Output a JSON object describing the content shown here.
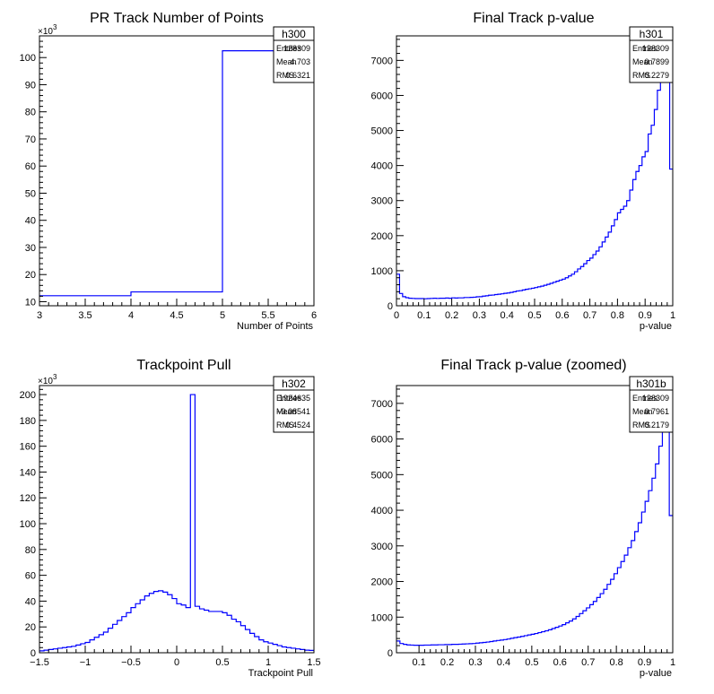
{
  "chart_data": [
    {
      "type": "histogram",
      "title": "PR Track Number of Points",
      "xlabel": "Number of Points",
      "ylabel": "",
      "xlim": [
        3,
        6
      ],
      "ylim": [
        8.5,
        108
      ],
      "y_multiplier": "×10",
      "y_multiplier_exp": "3",
      "xticks": [
        3,
        3.5,
        4,
        4.5,
        5,
        5.5,
        6
      ],
      "xtick_labels": [
        "3",
        "3.5",
        "4",
        "4.5",
        "5",
        "5.5",
        "6"
      ],
      "yticks": [
        10,
        20,
        30,
        40,
        50,
        60,
        70,
        80,
        90,
        100
      ],
      "ytick_labels": [
        "10",
        "20",
        "30",
        "40",
        "50",
        "60",
        "70",
        "80",
        "90",
        "100"
      ],
      "bins": {
        "x0": 3,
        "x1": 6,
        "values": [
          12.2,
          12.2,
          12.2,
          12.2,
          13.6,
          13.6,
          13.6,
          13.6,
          102.5,
          102.5,
          102.5,
          102.5
        ]
      },
      "line_color": "#0000ff",
      "stats": {
        "name": "h300",
        "rows": [
          {
            "label": "Entries",
            "value": "128309"
          },
          {
            "label": "Mean",
            "value": "4.703"
          },
          {
            "label": "RMS",
            "value": "0.6321"
          }
        ]
      }
    },
    {
      "type": "histogram",
      "title": "Final Track p-value",
      "xlabel": "p-value",
      "ylabel": "",
      "xlim": [
        0,
        1
      ],
      "ylim": [
        0,
        7700
      ],
      "xticks": [
        0,
        0.1,
        0.2,
        0.3,
        0.4,
        0.5,
        0.6,
        0.7,
        0.8,
        0.9,
        1
      ],
      "xtick_labels": [
        "0",
        "0.1",
        "0.2",
        "0.3",
        "0.4",
        "0.5",
        "0.6",
        "0.7",
        "0.8",
        "0.9",
        "1"
      ],
      "yticks": [
        0,
        1000,
        2000,
        3000,
        4000,
        5000,
        6000,
        7000
      ],
      "ytick_labels": [
        "0",
        "1000",
        "2000",
        "3000",
        "4000",
        "5000",
        "6000",
        "7000"
      ],
      "bins": {
        "x0": 0,
        "x1": 1,
        "values": [
          900,
          350,
          260,
          230,
          215,
          210,
          205,
          205,
          205,
          200,
          205,
          210,
          215,
          210,
          215,
          215,
          220,
          215,
          225,
          220,
          225,
          225,
          235,
          235,
          240,
          245,
          255,
          260,
          275,
          285,
          300,
          305,
          320,
          330,
          340,
          355,
          365,
          380,
          400,
          420,
          430,
          450,
          470,
          485,
          500,
          520,
          540,
          560,
          585,
          610,
          640,
          670,
          700,
          730,
          760,
          800,
          850,
          900,
          970,
          1050,
          1120,
          1200,
          1290,
          1360,
          1460,
          1560,
          1680,
          1820,
          1960,
          2100,
          2280,
          2460,
          2650,
          2750,
          2840,
          3000,
          3300,
          3600,
          3830,
          4000,
          4250,
          4400,
          4900,
          5150,
          5600,
          6150,
          6400,
          7400,
          7750,
          3900
        ]
      },
      "line_color": "#0000ff",
      "stats": {
        "name": "h301",
        "rows": [
          {
            "label": "Entries",
            "value": "128309"
          },
          {
            "label": "Mean",
            "value": "0.7899"
          },
          {
            "label": "RMS",
            "value": "0.2279"
          }
        ]
      }
    },
    {
      "type": "histogram",
      "title": "Trackpoint Pull",
      "xlabel": "Trackpoint Pull",
      "ylabel": "",
      "xlim": [
        -1.5,
        1.5
      ],
      "ylim": [
        0,
        207
      ],
      "y_multiplier": "×10",
      "y_multiplier_exp": "3",
      "xticks": [
        -1.5,
        -1,
        -0.5,
        0,
        0.5,
        1,
        1.5
      ],
      "xtick_labels": [
        "−1.5",
        "−1",
        "−0.5",
        "0",
        "0.5",
        "1",
        "1.5"
      ],
      "yticks": [
        0,
        20,
        40,
        60,
        80,
        100,
        120,
        140,
        160,
        180,
        200
      ],
      "ytick_labels": [
        "0",
        "20",
        "40",
        "60",
        "80",
        "100",
        "120",
        "140",
        "160",
        "180",
        "200"
      ],
      "bins": {
        "x0": -1.5,
        "x1": 1.5,
        "values": [
          1.5,
          2,
          2.5,
          3,
          3.5,
          4,
          4.5,
          5,
          6,
          7,
          8,
          10,
          12,
          14,
          16,
          19,
          22,
          25,
          28,
          31,
          35,
          38,
          41,
          44,
          46,
          47.5,
          48,
          47,
          45,
          42,
          38,
          37,
          35,
          200,
          36,
          34,
          33,
          32,
          32,
          32,
          31,
          29,
          26,
          24,
          21,
          18,
          15,
          12.5,
          10,
          8.5,
          7.5,
          6.5,
          5.5,
          4.5,
          4,
          3.5,
          3,
          2.5,
          2,
          1.8
        ]
      },
      "line_color": "#0000ff",
      "stats": {
        "name": "h302",
        "rows": [
          {
            "label": "Entries",
            "value": "1924635"
          },
          {
            "label": "Mean",
            "value": "−0.08541"
          },
          {
            "label": "RMS",
            "value": "0.4524"
          }
        ]
      }
    },
    {
      "type": "histogram",
      "title": "Final Track p-value (zoomed)",
      "xlabel": "p-value",
      "ylabel": "",
      "xlim": [
        0.02,
        1
      ],
      "ylim": [
        0,
        7500
      ],
      "xticks": [
        0.1,
        0.2,
        0.3,
        0.4,
        0.5,
        0.6,
        0.7,
        0.8,
        0.9,
        1
      ],
      "xtick_labels": [
        "0.1",
        "0.2",
        "0.3",
        "0.4",
        "0.5",
        "0.6",
        "0.7",
        "0.8",
        "0.9",
        "1"
      ],
      "yticks": [
        0,
        1000,
        2000,
        3000,
        4000,
        5000,
        6000,
        7000
      ],
      "ytick_labels": [
        "0",
        "1000",
        "2000",
        "3000",
        "4000",
        "5000",
        "6000",
        "7000"
      ],
      "bins": {
        "x0": 0.02,
        "x1": 1,
        "values": [
          330,
          260,
          235,
          220,
          215,
          210,
          210,
          210,
          215,
          215,
          220,
          220,
          225,
          225,
          230,
          230,
          235,
          235,
          240,
          245,
          250,
          255,
          260,
          270,
          280,
          290,
          300,
          315,
          330,
          345,
          355,
          370,
          385,
          405,
          425,
          440,
          460,
          480,
          500,
          520,
          540,
          565,
          590,
          615,
          645,
          680,
          715,
          750,
          790,
          840,
          890,
          950,
          1020,
          1100,
          1180,
          1260,
          1350,
          1440,
          1550,
          1660,
          1780,
          1920,
          2060,
          2220,
          2390,
          2560,
          2740,
          2950,
          3150,
          3400,
          3650,
          3950,
          4250,
          4550,
          4900,
          5300,
          5800,
          6400,
          7300,
          3850
        ]
      },
      "line_color": "#0000ff",
      "stats": {
        "name": "h301b",
        "rows": [
          {
            "label": "Entries",
            "value": "128309"
          },
          {
            "label": "Mean",
            "value": "0.7961"
          },
          {
            "label": "RMS",
            "value": "0.2179"
          }
        ]
      }
    }
  ]
}
